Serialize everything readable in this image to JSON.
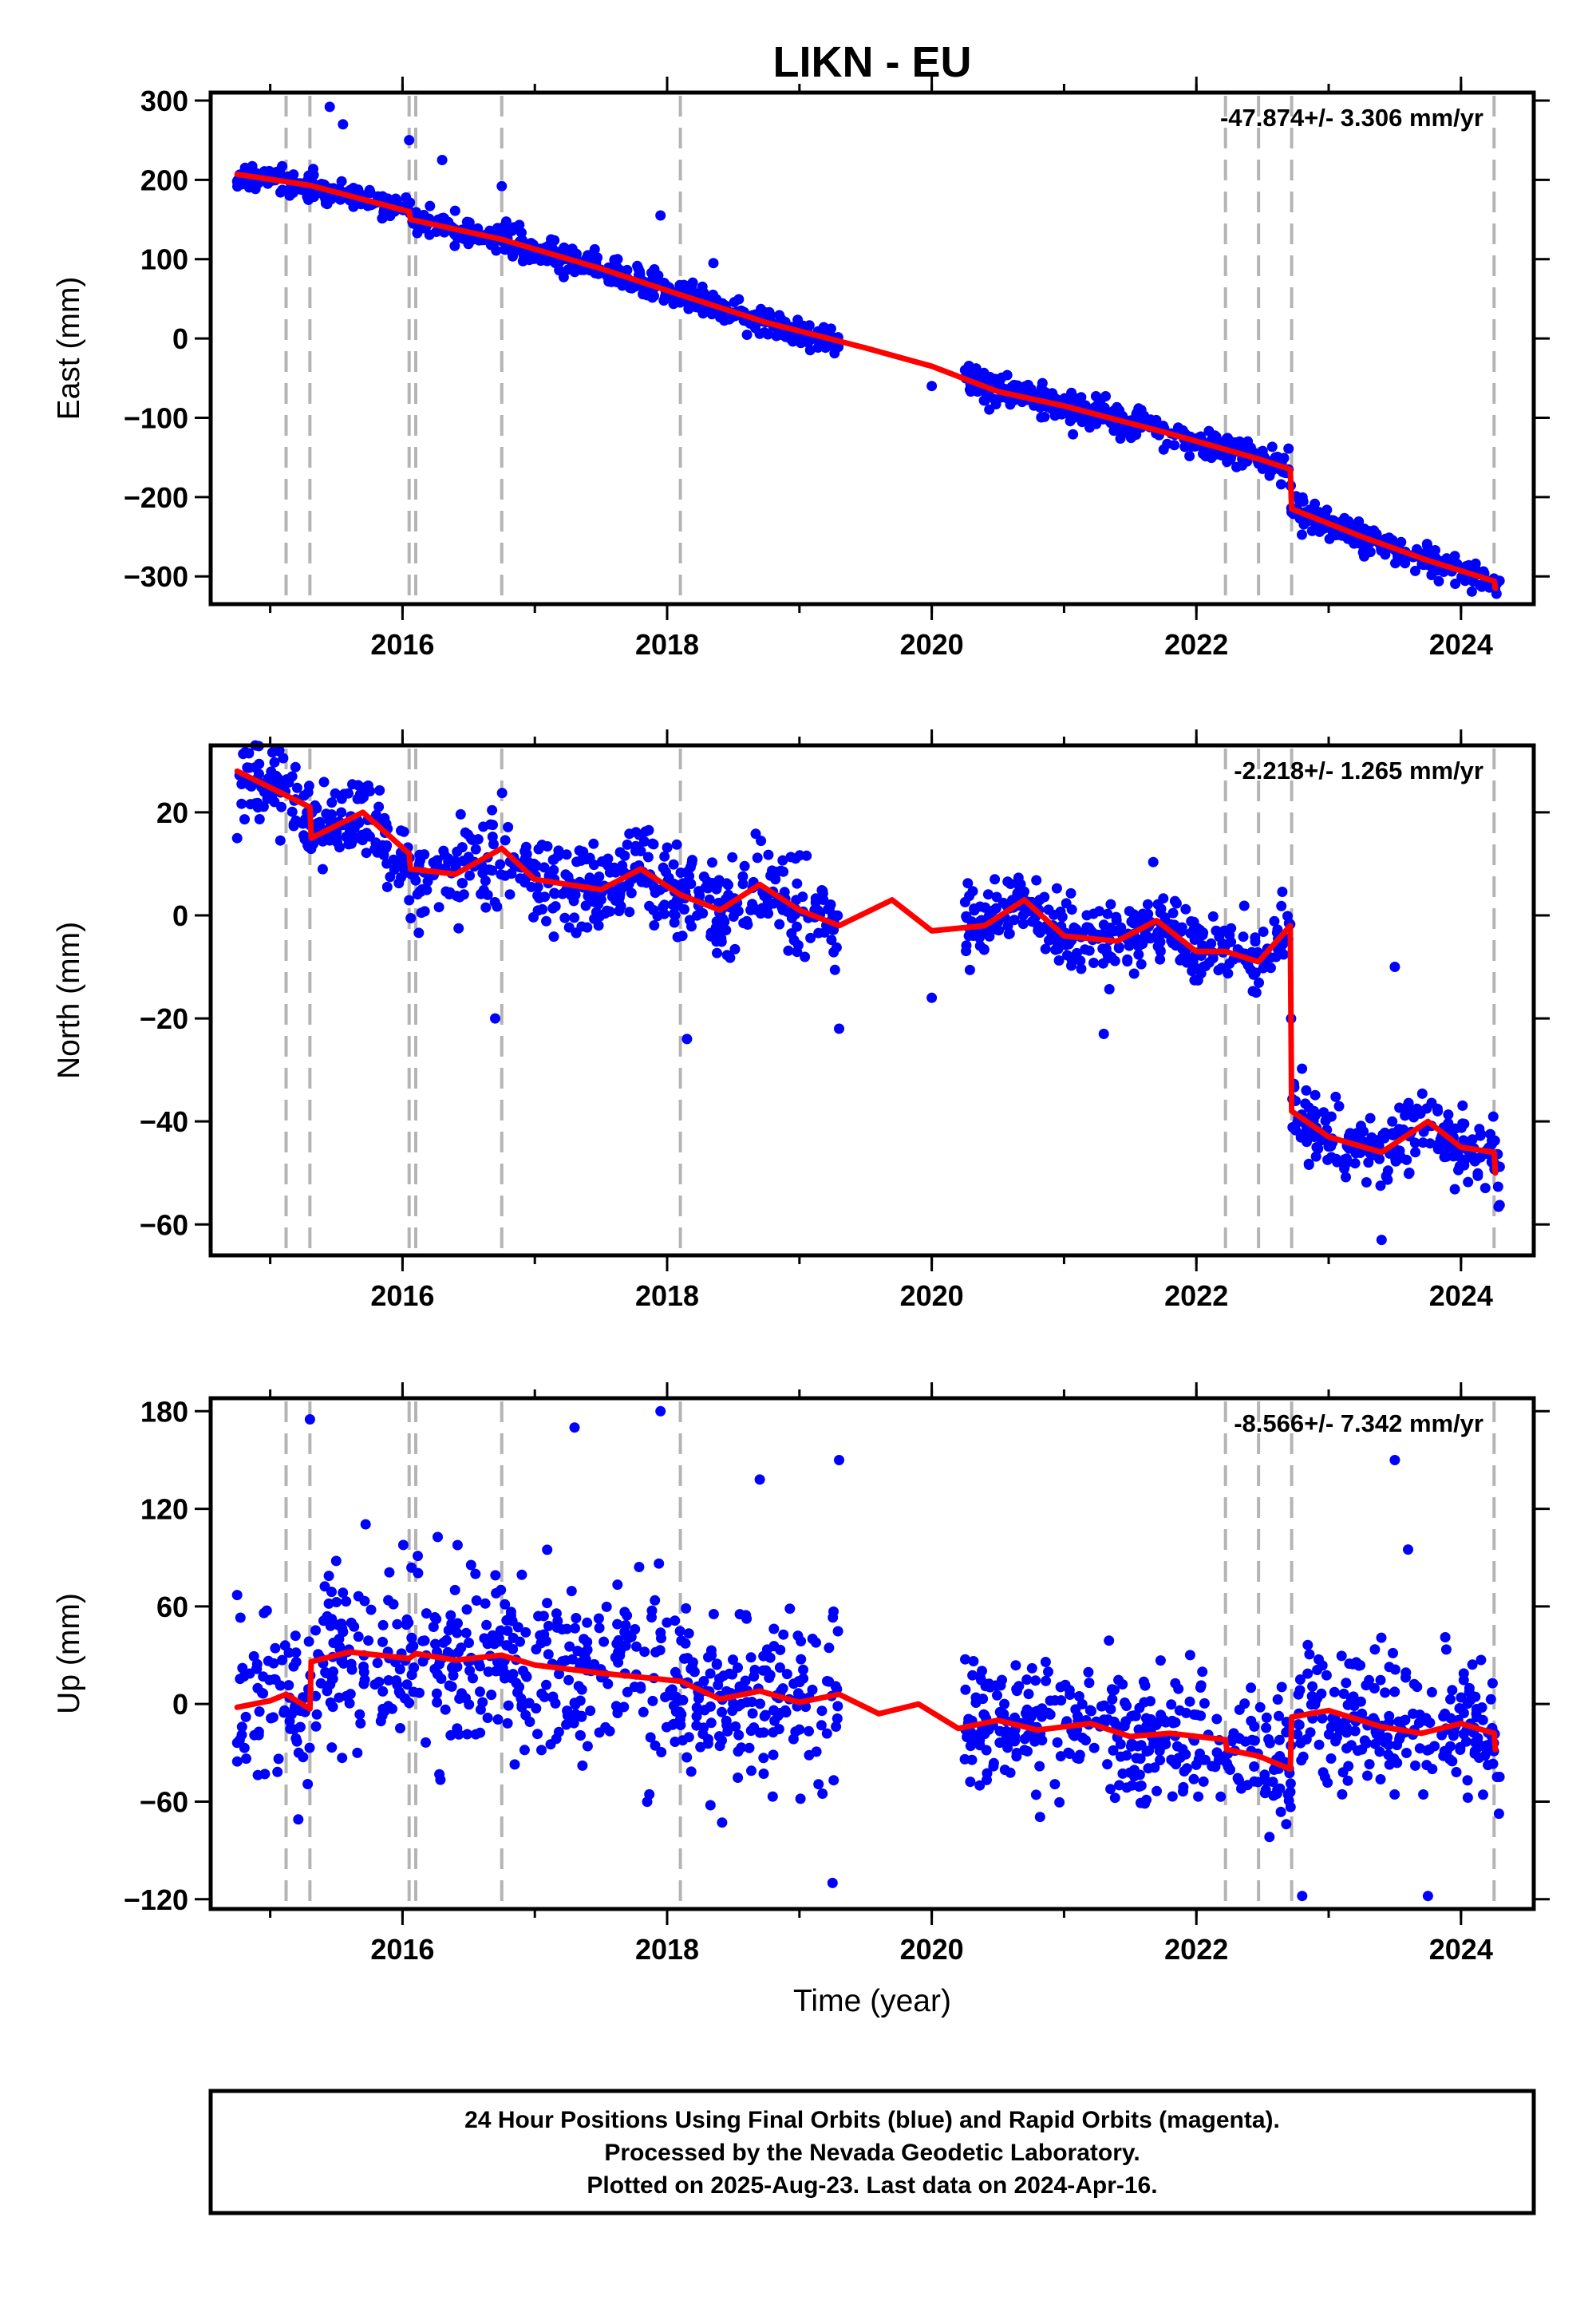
{
  "chart_data": {
    "type": "scatter",
    "title": "LIKN - EU",
    "xlabel": "Time (year)",
    "x_tick_labels": [
      "2016",
      "2018",
      "2020",
      "2022",
      "2024"
    ],
    "xlim": [
      2014.55,
      2024.55
    ],
    "marker_color": "#0000ff",
    "fit_color": "#ff0000",
    "event_line_color": "#b4b4b4",
    "event_lines": [
      2015.12,
      2015.3,
      2016.05,
      2016.1,
      2016.75,
      2018.1,
      2022.22,
      2022.47,
      2022.72,
      2024.25
    ],
    "panels": [
      {
        "id": "east",
        "ylabel": "East (mm)",
        "ylim": [
          -335,
          310
        ],
        "y_ticks": [
          300,
          200,
          100,
          0,
          -100,
          -200,
          -300
        ],
        "y_tick_labels": [
          "300",
          "200",
          "100",
          "0",
          "−100",
          "−200",
          "−300"
        ],
        "rate": "-47.874+/- 3.306 mm/yr",
        "fit_points": [
          [
            2014.75,
            207
          ],
          [
            2015.3,
            193
          ],
          [
            2016.05,
            160
          ],
          [
            2016.06,
            150
          ],
          [
            2016.75,
            125
          ],
          [
            2017.5,
            88
          ],
          [
            2018.1,
            55
          ],
          [
            2018.75,
            20
          ],
          [
            2019.5,
            -12
          ],
          [
            2020.0,
            -35
          ],
          [
            2020.5,
            -67
          ],
          [
            2021.0,
            -85
          ],
          [
            2021.75,
            -118
          ],
          [
            2022.22,
            -140
          ],
          [
            2022.47,
            -152
          ],
          [
            2022.71,
            -165
          ],
          [
            2022.72,
            -215
          ],
          [
            2023.25,
            -250
          ],
          [
            2023.75,
            -280
          ],
          [
            2024.25,
            -306
          ],
          [
            2024.26,
            -315
          ]
        ],
        "scatter_segments": [
          [
            2014.75,
            2019.3,
            13
          ],
          [
            2020.25,
            2024.3,
            13
          ]
        ],
        "outliers": [
          [
            2015.45,
            292
          ],
          [
            2015.55,
            270
          ],
          [
            2016.05,
            250
          ],
          [
            2016.3,
            225
          ],
          [
            2016.75,
            192
          ],
          [
            2017.95,
            155
          ],
          [
            2018.35,
            95
          ],
          [
            2020.0,
            -60
          ],
          [
            2022.9,
            -230
          ]
        ]
      },
      {
        "id": "north",
        "ylabel": "North (mm)",
        "ylim": [
          -66,
          33
        ],
        "y_ticks": [
          20,
          0,
          -20,
          -40,
          -60
        ],
        "y_tick_labels": [
          "20",
          "0",
          "−20",
          "−40",
          "−60"
        ],
        "rate": "-2.218+/- 1.265 mm/yr",
        "fit_points": [
          [
            2014.75,
            28
          ],
          [
            2015.3,
            21
          ],
          [
            2015.31,
            15
          ],
          [
            2015.7,
            20
          ],
          [
            2016.05,
            12
          ],
          [
            2016.06,
            9
          ],
          [
            2016.4,
            8
          ],
          [
            2016.75,
            13
          ],
          [
            2017.0,
            7
          ],
          [
            2017.5,
            5
          ],
          [
            2017.8,
            9
          ],
          [
            2018.1,
            4
          ],
          [
            2018.4,
            1
          ],
          [
            2018.7,
            6
          ],
          [
            2019.0,
            1
          ],
          [
            2019.3,
            -2
          ],
          [
            2019.7,
            3
          ],
          [
            2020.0,
            -3
          ],
          [
            2020.4,
            -2
          ],
          [
            2020.7,
            3
          ],
          [
            2021.0,
            -4
          ],
          [
            2021.4,
            -5
          ],
          [
            2021.7,
            -1
          ],
          [
            2022.0,
            -7
          ],
          [
            2022.22,
            -7
          ],
          [
            2022.47,
            -9
          ],
          [
            2022.71,
            -2
          ],
          [
            2022.72,
            -38
          ],
          [
            2023.0,
            -43
          ],
          [
            2023.4,
            -46
          ],
          [
            2023.75,
            -40
          ],
          [
            2024.0,
            -45
          ],
          [
            2024.25,
            -46
          ],
          [
            2024.26,
            -50
          ]
        ],
        "scatter_segments": [
          [
            2014.75,
            2019.3,
            6
          ],
          [
            2020.25,
            2022.72,
            5
          ],
          [
            2022.72,
            2024.3,
            5
          ]
        ],
        "outliers": [
          [
            2014.75,
            15
          ],
          [
            2016.7,
            -20
          ],
          [
            2018.15,
            -24
          ],
          [
            2019.3,
            -22
          ],
          [
            2023.4,
            -63
          ],
          [
            2023.5,
            -10
          ],
          [
            2020.0,
            -16
          ],
          [
            2021.3,
            -23
          ]
        ]
      },
      {
        "id": "up",
        "ylabel": "Up (mm)",
        "ylim": [
          -126,
          188
        ],
        "y_ticks": [
          180,
          120,
          60,
          0,
          -60,
          -120
        ],
        "y_tick_labels": [
          "180",
          "120",
          "60",
          "0",
          "−60",
          "−120"
        ],
        "rate": "-8.566+/- 7.342 mm/yr",
        "fit_points": [
          [
            2014.75,
            -2
          ],
          [
            2015.0,
            2
          ],
          [
            2015.12,
            6
          ],
          [
            2015.3,
            -3
          ],
          [
            2015.31,
            26
          ],
          [
            2015.6,
            32
          ],
          [
            2016.05,
            28
          ],
          [
            2016.1,
            31
          ],
          [
            2016.4,
            27
          ],
          [
            2016.75,
            30
          ],
          [
            2017.0,
            24
          ],
          [
            2017.5,
            19
          ],
          [
            2018.1,
            14
          ],
          [
            2018.4,
            3
          ],
          [
            2018.7,
            8
          ],
          [
            2019.0,
            1
          ],
          [
            2019.3,
            6
          ],
          [
            2019.6,
            -6
          ],
          [
            2019.9,
            0
          ],
          [
            2020.2,
            -15
          ],
          [
            2020.5,
            -10
          ],
          [
            2020.8,
            -16
          ],
          [
            2021.2,
            -12
          ],
          [
            2021.5,
            -20
          ],
          [
            2021.8,
            -18
          ],
          [
            2022.22,
            -22
          ],
          [
            2022.23,
            -28
          ],
          [
            2022.47,
            -32
          ],
          [
            2022.71,
            -40
          ],
          [
            2022.72,
            -8
          ],
          [
            2023.0,
            -4
          ],
          [
            2023.4,
            -14
          ],
          [
            2023.7,
            -18
          ],
          [
            2024.0,
            -12
          ],
          [
            2024.25,
            -18
          ],
          [
            2024.26,
            -28
          ]
        ],
        "scatter_segments": [
          [
            2014.75,
            2019.3,
            38
          ],
          [
            2020.25,
            2024.3,
            28
          ]
        ],
        "outliers": [
          [
            2014.75,
            67
          ],
          [
            2015.3,
            175
          ],
          [
            2017.3,
            170
          ],
          [
            2017.95,
            180
          ],
          [
            2018.7,
            138
          ],
          [
            2019.3,
            150
          ],
          [
            2019.25,
            -110
          ],
          [
            2023.5,
            150
          ],
          [
            2023.6,
            95
          ],
          [
            2022.8,
            -118
          ],
          [
            2023.75,
            -118
          ]
        ]
      }
    ]
  },
  "footer": {
    "line1": "24 Hour Positions Using Final Orbits (blue) and Rapid Orbits (magenta).",
    "line2": "Processed by the Nevada Geodetic Laboratory.",
    "line3": "Plotted on 2025-Aug-23. Last data on 2024-Apr-16."
  }
}
